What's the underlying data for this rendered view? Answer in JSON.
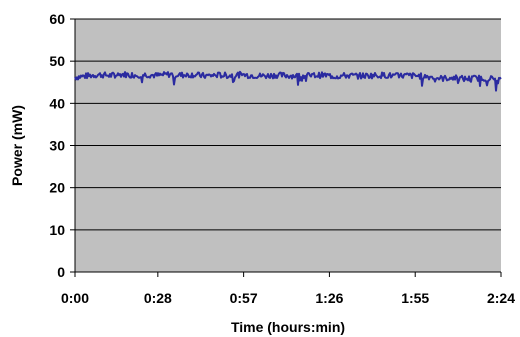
{
  "chart_data": {
    "type": "line",
    "title": "",
    "xlabel": "Time (hours:min)",
    "ylabel": "Power (mW)",
    "x_ticks": [
      "0:00",
      "0:28",
      "0:57",
      "1:26",
      "1:55",
      "2:24"
    ],
    "x_tick_minutes": [
      0,
      28,
      57,
      86,
      115,
      144
    ],
    "xlim_minutes": [
      0,
      144
    ],
    "y_ticks": [
      0,
      10,
      20,
      30,
      40,
      50,
      60
    ],
    "ylim": [
      0,
      60
    ],
    "grid": "horizontal",
    "legend": "none",
    "colors": {
      "plot_background": "#c0c0c0",
      "series": "#2b2ba0",
      "gridline": "#000000"
    },
    "series": [
      {
        "x_minutes": [
          0,
          4,
          8,
          12,
          16,
          20,
          24,
          28,
          32,
          36,
          40,
          44,
          48,
          52,
          56,
          60,
          64,
          68,
          72,
          76,
          80,
          84,
          88,
          92,
          96,
          100,
          104,
          108,
          112,
          116,
          120,
          124,
          128,
          132,
          136,
          140,
          144
        ],
        "values": [
          46.2,
          46.5,
          46.8,
          46.6,
          46.9,
          46.7,
          46.8,
          46.6,
          46.9,
          46.7,
          46.8,
          46.5,
          46.7,
          46.6,
          46.8,
          46.6,
          46.5,
          46.7,
          46.6,
          46.5,
          46.6,
          46.7,
          46.4,
          46.6,
          46.5,
          46.6,
          46.7,
          46.5,
          46.6,
          46.5,
          46.3,
          45.9,
          46.1,
          45.8,
          46.0,
          45.9,
          45.6
        ]
      }
    ]
  }
}
